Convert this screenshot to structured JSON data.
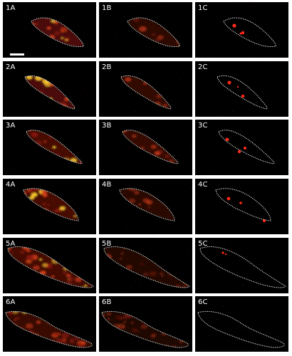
{
  "panels": [
    {
      "label": "1A"
    },
    {
      "label": "1B"
    },
    {
      "label": "1C"
    },
    {
      "label": "2A"
    },
    {
      "label": "2B"
    },
    {
      "label": "2C"
    },
    {
      "label": "3A"
    },
    {
      "label": "3B"
    },
    {
      "label": "3C"
    },
    {
      "label": "4A"
    },
    {
      "label": "4B"
    },
    {
      "label": "4C"
    },
    {
      "label": "5A"
    },
    {
      "label": "5B"
    },
    {
      "label": "5C"
    },
    {
      "label": "6A"
    },
    {
      "label": "6B"
    },
    {
      "label": "6C"
    }
  ],
  "colors": {
    "background": "#000000",
    "outline": "#ffffff",
    "signal_bright": "#ffcc33",
    "signal_mid": "#e0421a",
    "signal_dim": "#8a1a0c",
    "spot": "#ff2a1a"
  }
}
